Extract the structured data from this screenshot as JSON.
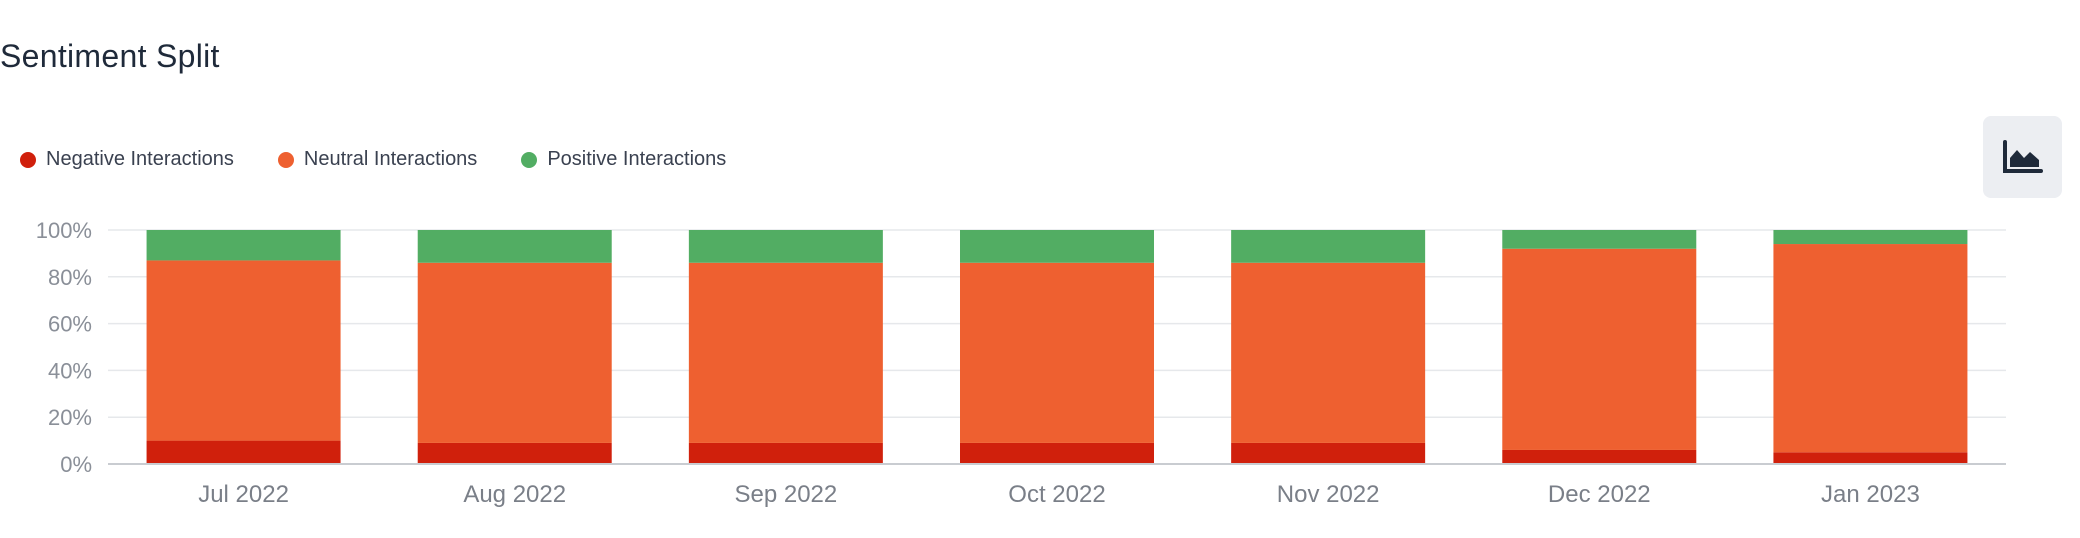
{
  "title": "Sentiment Split",
  "legend": [
    {
      "label": "Negative Interactions",
      "color": "#d0200c"
    },
    {
      "label": "Neutral Interactions",
      "color": "#ee6030"
    },
    {
      "label": "Positive Interactions",
      "color": "#52ad63"
    }
  ],
  "toolbar": {
    "chart_type_icon": "area-chart-icon"
  },
  "chart_data": {
    "type": "bar",
    "stacked": true,
    "percent": true,
    "categories": [
      "Jul 2022",
      "Aug 2022",
      "Sep 2022",
      "Oct 2022",
      "Nov 2022",
      "Dec 2022",
      "Jan 2023"
    ],
    "series": [
      {
        "name": "Negative Interactions",
        "color": "#d0200c",
        "values": [
          10,
          9,
          9,
          9,
          9,
          6,
          5
        ]
      },
      {
        "name": "Neutral Interactions",
        "color": "#ee6030",
        "values": [
          77,
          77,
          77,
          77,
          77,
          86,
          89
        ]
      },
      {
        "name": "Positive Interactions",
        "color": "#52ad63",
        "values": [
          13,
          14,
          14,
          14,
          14,
          8,
          6
        ]
      }
    ],
    "y_ticks": [
      "0%",
      "20%",
      "40%",
      "60%",
      "80%",
      "100%"
    ],
    "ylim": [
      0,
      100
    ],
    "grid": true,
    "legend_position": "top-left"
  }
}
